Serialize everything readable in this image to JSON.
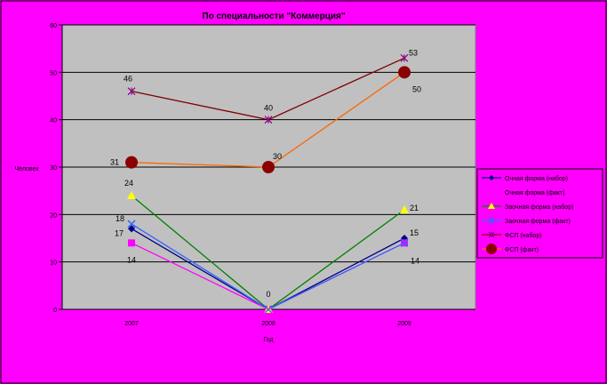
{
  "chart_data": {
    "type": "line",
    "title": "По специальности \"Коммерция\"",
    "xlabel": "Год",
    "ylabel": "Человек",
    "categories": [
      "2007",
      "2008",
      "2009"
    ],
    "ylim": [
      0,
      60
    ],
    "yticks": [
      0,
      10,
      20,
      30,
      40,
      50,
      60
    ],
    "ytick_labels": [
      "0",
      "10",
      "20",
      "30",
      "40",
      "50",
      "60"
    ],
    "grid": true,
    "legend_position": "right",
    "series": [
      {
        "name": "Очная форма (набор)",
        "values": [
          17,
          0,
          15
        ],
        "color": "#000080",
        "marker": "diamond",
        "labels": [
          "17",
          "",
          "15"
        ]
      },
      {
        "name": "Очная форма (факт)",
        "values": [
          14,
          0,
          14
        ],
        "color": "#ff00ff",
        "marker": "square",
        "labels": [
          "14",
          "",
          "14"
        ]
      },
      {
        "name": "Заочная форма (набор)",
        "values": [
          24,
          0,
          21
        ],
        "color": "#008000",
        "marker": "triangle",
        "labels": [
          "24",
          "0",
          "21"
        ]
      },
      {
        "name": "Заочная форма (факт)",
        "values": [
          18,
          0,
          14
        ],
        "color": "#3366ff",
        "marker": "x",
        "labels": [
          "18",
          "",
          ""
        ]
      },
      {
        "name": "ФСП (набор)",
        "values": [
          46,
          40,
          53
        ],
        "color": "#800000",
        "marker": "star",
        "labels": [
          "46",
          "40",
          "53"
        ]
      },
      {
        "name": "ФСП (факт)",
        "values": [
          31,
          30,
          50
        ],
        "color": "#ff6600",
        "marker": "circle",
        "labels": [
          "31",
          "30",
          "50"
        ]
      }
    ]
  }
}
